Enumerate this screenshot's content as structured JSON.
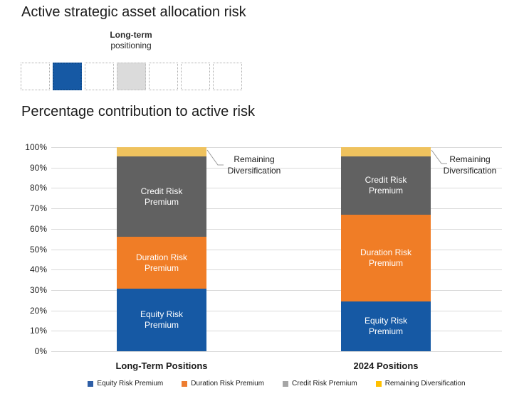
{
  "page_title": "Active strategic asset allocation risk",
  "positioning": {
    "label_line1": "Long-term",
    "label_line2": "positioning",
    "squares": [
      "empty",
      "blue",
      "empty",
      "gray",
      "empty",
      "empty",
      "empty"
    ],
    "colors": {
      "blue": "#1659A4",
      "gray": "#DBDBDB"
    }
  },
  "section_title": "Percentage contribution to active risk",
  "chart_data": {
    "type": "bar",
    "subtype": "stacked-100-percent-column",
    "title": "Percentage contribution to active risk",
    "categories": [
      "Long-Term Positions",
      "2024 Positions"
    ],
    "series": [
      {
        "name": "Equity Risk Premium",
        "color": "#1659A4",
        "values": [
          30.5,
          24.5
        ],
        "bar_label": true
      },
      {
        "name": "Duration Risk Premium",
        "color": "#F07D26",
        "values": [
          25.5,
          42.5
        ],
        "bar_label": true
      },
      {
        "name": "Credit Risk Premium",
        "color": "#616161",
        "values": [
          39.5,
          28.5
        ],
        "bar_label": true
      },
      {
        "name": "Remaining Diversification",
        "color": "#EFC25E",
        "values": [
          4.5,
          4.5
        ],
        "bar_label": false
      }
    ],
    "ylim": [
      0,
      100
    ],
    "y_ticks": [
      "0%",
      "10%",
      "20%",
      "30%",
      "40%",
      "50%",
      "60%",
      "70%",
      "80%",
      "90%",
      "100%"
    ],
    "grid": true,
    "legend_position": "bottom",
    "legend": [
      {
        "label": "Equity Risk Premium",
        "color": "#2E5EA6"
      },
      {
        "label": "Duration Risk Premium",
        "color": "#ED7D31"
      },
      {
        "label": "Credit Risk Premium",
        "color": "#A6A6A6"
      },
      {
        "label": "Remaining Diversification",
        "color": "#FFC000"
      }
    ],
    "annotations": [
      {
        "line1": "Remaining",
        "line2": "Diversification",
        "target": "Long-Term Positions"
      },
      {
        "line1": "Remaining",
        "line2": "Diversification",
        "target": "2024 Positions"
      }
    ]
  }
}
